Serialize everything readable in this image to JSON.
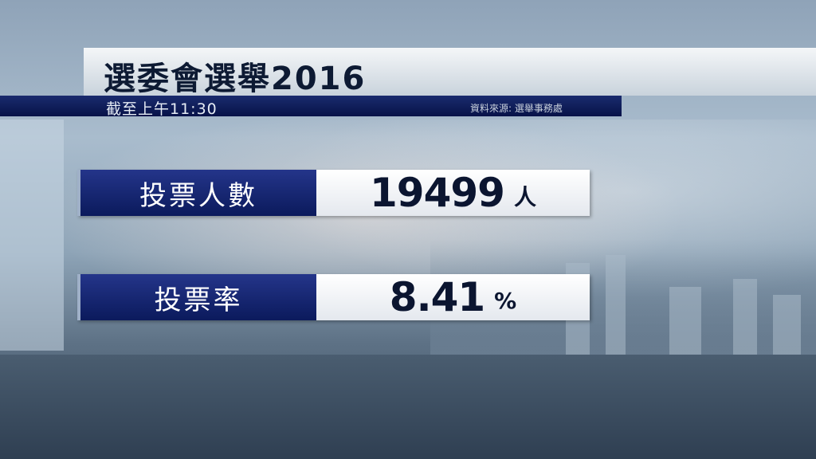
{
  "title": "選委會選舉2016",
  "subtitle": {
    "time": "截至上午11:30",
    "source": "資料來源: 選舉事務處"
  },
  "stats": [
    {
      "label": "投票人數",
      "value": "19499",
      "unit": "人"
    },
    {
      "label": "投票率",
      "value": "8.41",
      "unit": "%"
    }
  ],
  "colors": {
    "label_bg": "#0b1a5c",
    "value_bg": "#ffffff",
    "text": "#0b1530"
  }
}
